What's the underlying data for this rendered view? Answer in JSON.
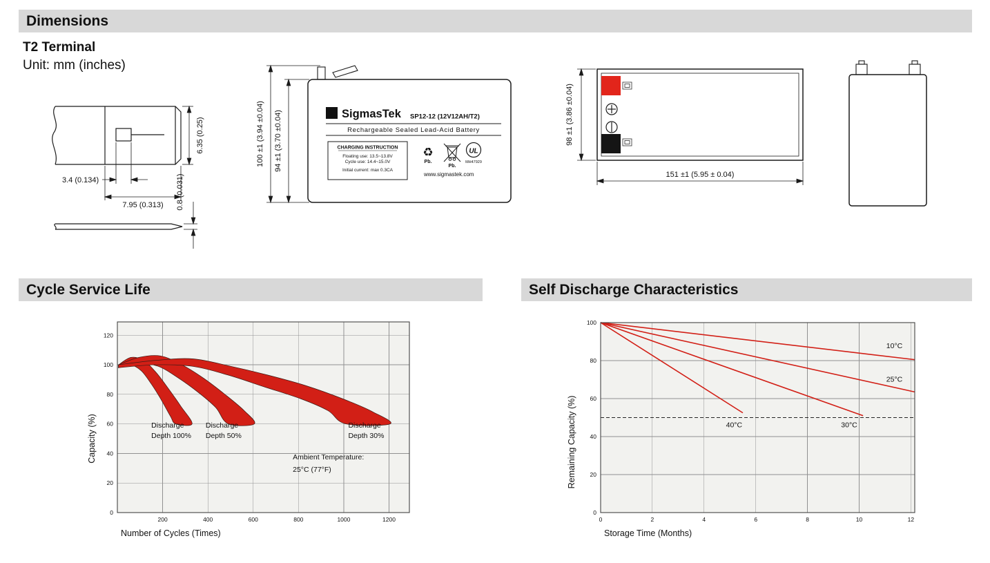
{
  "headers": {
    "dimensions": "Dimensions",
    "terminal_type": "T2 Terminal",
    "unit": "Unit: mm (inches)",
    "cycle_life": "Cycle Service Life",
    "self_discharge": "Self Discharge Characteristics"
  },
  "colors": {
    "section_bar_gray": "#d8d8d8",
    "chart_red": "#d21f16",
    "positive_terminal_red": "#e2251b",
    "negative_terminal_black": "#151515"
  },
  "terminal_drawing": {
    "dim_dimple_width": "3.4 (0.134)",
    "dim_tab_width": "7.95 (0.313)",
    "dim_block_height": "6.35 (0.25)",
    "dim_thickness": "0.8 (0.031)"
  },
  "front_view": {
    "sigma": "Σ",
    "brand": "SigmasTek",
    "model": "SP12-12 (12V12AH/T2)",
    "subtitle": "Rechargeable Sealed Lead-Acid Battery",
    "charging": {
      "title": "CHARGING INSTRUCTION",
      "line1": "Floating use: 13.5~13.8V",
      "line2": "Cycle use: 14.4~15.0V",
      "line3": "Initial current: max 0.3CA"
    },
    "recycle_icon": "♻",
    "pb_recycle": "Pb.",
    "pb_bin": "Pb.",
    "ul_mark": "UL",
    "ul_code": "MH47929",
    "website": "www.sigmastek.com",
    "dim_total_height": "100 ±1 (3.94 ±0.04)",
    "dim_case_height": "94 ±1 (3.70 ±0.04)"
  },
  "top_view": {
    "dim_width_side": "98 ±1 (3.86 ±0.04)",
    "dim_length": "151 ±1 (5.95 ± 0.04)"
  },
  "chart_data": [
    {
      "el": "chart-cycle",
      "type": "area",
      "title": "Cycle Service Life",
      "xlabel": "Number of Cycles (Times)",
      "ylabel": "Capacity (%)",
      "xlim": [
        0,
        1290
      ],
      "ylim": [
        0,
        129
      ],
      "xticks": [
        200,
        400,
        600,
        800,
        1000,
        1200
      ],
      "yticks": [
        0,
        20,
        40,
        60,
        80,
        100,
        120
      ],
      "grid": true,
      "legend": "none",
      "color": "#d21f16",
      "bands": [
        {
          "name": "Discharge Depth 100%",
          "capacity_end_pct": 60,
          "end_cycles": 330,
          "upper": [
            [
              5,
              100
            ],
            [
              60,
              105
            ],
            [
              115,
              103
            ],
            [
              170,
              95
            ],
            [
              225,
              84
            ],
            [
              280,
              72
            ],
            [
              330,
              60
            ]
          ],
          "lower": [
            [
              5,
              98
            ],
            [
              55,
              100
            ],
            [
              105,
              96
            ],
            [
              150,
              87
            ],
            [
              195,
              76
            ],
            [
              235,
              65
            ],
            [
              258,
              60
            ]
          ]
        },
        {
          "name": "Discharge Depth 50%",
          "capacity_end_pct": 60,
          "end_cycles": 605,
          "upper": [
            [
              5,
              100
            ],
            [
              95,
              105
            ],
            [
              190,
              106
            ],
            [
              285,
              100
            ],
            [
              380,
              91
            ],
            [
              475,
              80
            ],
            [
              560,
              69
            ],
            [
              605,
              60
            ]
          ],
          "lower": [
            [
              5,
              98
            ],
            [
              90,
              101
            ],
            [
              180,
              99
            ],
            [
              270,
              91
            ],
            [
              360,
              81
            ],
            [
              435,
              71
            ],
            [
              490,
              60
            ]
          ]
        },
        {
          "name": "Discharge Depth 30%",
          "capacity_end_pct": 60,
          "end_cycles": 1205,
          "upper": [
            [
              5,
              100
            ],
            [
              170,
              103
            ],
            [
              335,
              104
            ],
            [
              500,
              99
            ],
            [
              665,
              93
            ],
            [
              830,
              86
            ],
            [
              995,
              77
            ],
            [
              1130,
              68
            ],
            [
              1205,
              60
            ]
          ],
          "lower": [
            [
              5,
              98
            ],
            [
              165,
              100
            ],
            [
              330,
              99
            ],
            [
              490,
              93
            ],
            [
              650,
              85
            ],
            [
              810,
              77
            ],
            [
              930,
              69
            ],
            [
              1010,
              60
            ]
          ]
        }
      ],
      "annotations": [
        {
          "text": "Discharge",
          "x": 150,
          "y": 57.5
        },
        {
          "text": "Depth 100%",
          "x": 150,
          "y": 50.5
        },
        {
          "text": "Discharge",
          "x": 390,
          "y": 57.5
        },
        {
          "text": "Depth 50%",
          "x": 390,
          "y": 50.5
        },
        {
          "text": "Discharge",
          "x": 1020,
          "y": 57.5
        },
        {
          "text": "Depth 30%",
          "x": 1020,
          "y": 50.5
        },
        {
          "text": "Ambient Temperature:",
          "x": 775,
          "y": 36
        },
        {
          "text": "25°C (77°F)",
          "x": 775,
          "y": 27.5
        }
      ]
    },
    {
      "el": "chart-self",
      "type": "line",
      "title": "Self Discharge Characteristics",
      "xlabel": "Storage Time (Months)",
      "ylabel": "Remaining Capacity (%)",
      "xlim": [
        0,
        12.15
      ],
      "ylim": [
        0,
        100
      ],
      "xticks": [
        0,
        2,
        4,
        6,
        8,
        10,
        12
      ],
      "yticks": [
        0,
        20,
        40,
        60,
        80,
        100
      ],
      "grid": true,
      "color": "#d21f16",
      "hline": {
        "y": 50,
        "style": "dashed"
      },
      "series": [
        {
          "name": "10°C",
          "points": [
            [
              0,
              100
            ],
            [
              12.15,
              80.5
            ]
          ]
        },
        {
          "name": "25°C",
          "points": [
            [
              0,
              100
            ],
            [
              12.15,
              63.5
            ]
          ]
        },
        {
          "name": "30°C",
          "points": [
            [
              0,
              100
            ],
            [
              10.15,
              51
            ]
          ]
        },
        {
          "name": "40°C",
          "points": [
            [
              0,
              100
            ],
            [
              5.5,
              52.5
            ]
          ]
        }
      ],
      "annotations": [
        {
          "text": "10°C",
          "x": 11.05,
          "y": 86.5
        },
        {
          "text": "25°C",
          "x": 11.05,
          "y": 69
        },
        {
          "text": "40°C",
          "x": 4.85,
          "y": 45
        },
        {
          "text": "30°C",
          "x": 9.3,
          "y": 45
        }
      ]
    }
  ]
}
